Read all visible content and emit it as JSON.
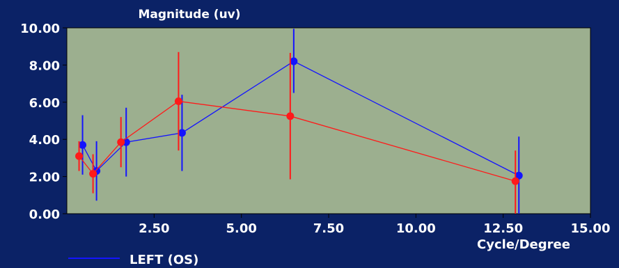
{
  "chart_data": {
    "type": "scatter",
    "title": "",
    "ylabel": "Magnitude (uv)",
    "xlabel": "Cycle/Degree",
    "xlim": [
      0,
      15
    ],
    "ylim": [
      0,
      10
    ],
    "x_ticks": [
      "2.50",
      "5.00",
      "7.50",
      "10.00",
      "12.50",
      "15.00"
    ],
    "x_tick_values": [
      2.5,
      5,
      7.5,
      10,
      12.5,
      15
    ],
    "y_ticks": [
      "0.00",
      "2.00",
      "4.00",
      "6.00",
      "8.00",
      "10.00"
    ],
    "y_tick_values": [
      0,
      2,
      4,
      6,
      8,
      10
    ],
    "grid": false,
    "legend_position": "bottom-left",
    "plot_background": "#9caf8f",
    "series": [
      {
        "name": "LEFT (OS)",
        "color": "#1414ff",
        "points": [
          {
            "x": 0.45,
            "y": 3.7,
            "ylow": 2.1,
            "yhigh": 5.3
          },
          {
            "x": 0.85,
            "y": 2.3,
            "ylow": 0.7,
            "yhigh": 3.9
          },
          {
            "x": 1.7,
            "y": 3.85,
            "ylow": 2.0,
            "yhigh": 5.7
          },
          {
            "x": 3.3,
            "y": 4.35,
            "ylow": 2.3,
            "yhigh": 6.4
          },
          {
            "x": 6.5,
            "y": 8.2,
            "ylow": 6.5,
            "yhigh": 9.95
          },
          {
            "x": 12.95,
            "y": 2.05,
            "ylow": 0,
            "yhigh": 4.15
          }
        ]
      },
      {
        "color": "#ff1a1a",
        "points": [
          {
            "x": 0.35,
            "y": 3.1,
            "ylow": 2.3,
            "yhigh": 3.9
          },
          {
            "x": 0.75,
            "y": 2.15,
            "ylow": 1.1,
            "yhigh": 3.2
          },
          {
            "x": 1.55,
            "y": 3.85,
            "ylow": 2.5,
            "yhigh": 5.2
          },
          {
            "x": 3.2,
            "y": 6.05,
            "ylow": 3.4,
            "yhigh": 8.7
          },
          {
            "x": 6.4,
            "y": 5.25,
            "ylow": 1.85,
            "yhigh": 8.65
          },
          {
            "x": 12.85,
            "y": 1.75,
            "ylow": 0,
            "yhigh": 3.4
          }
        ]
      }
    ]
  }
}
